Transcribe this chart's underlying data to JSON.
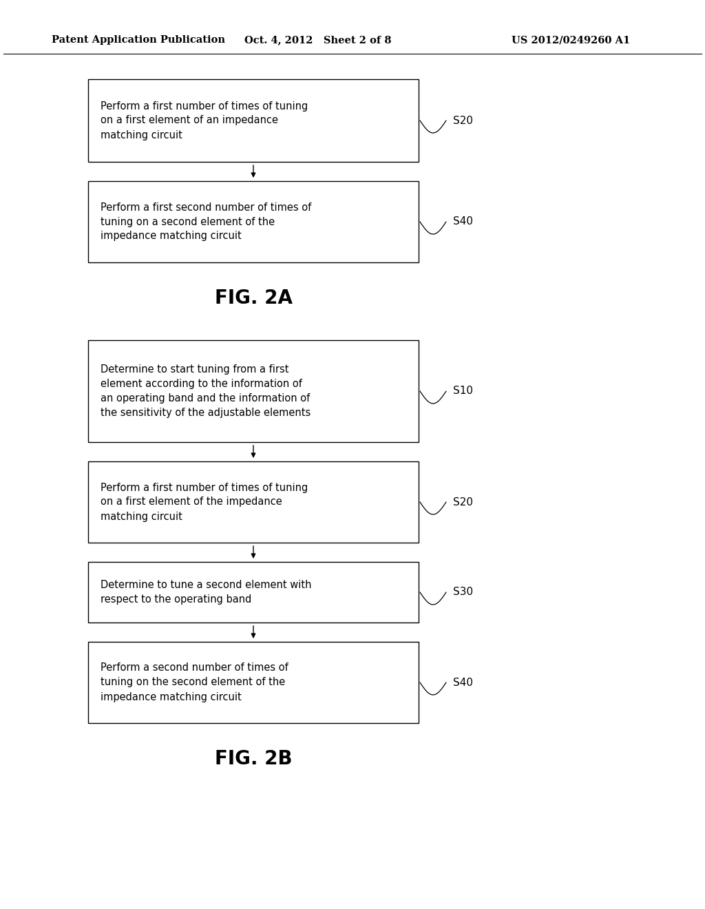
{
  "background_color": "#ffffff",
  "header_left": "Patent Application Publication",
  "header_mid": "Oct. 4, 2012   Sheet 2 of 8",
  "header_right": "US 2012/0249260 A1",
  "fig2a": {
    "title": "FIG. 2A",
    "boxes": [
      {
        "label": "S20",
        "text": "Perform a first number of times of tuning\non a first element of an impedance\nmatching circuit"
      },
      {
        "label": "S40",
        "text": "Perform a first second number of times of\ntuning on a second element of the\nimpedance matching circuit"
      }
    ]
  },
  "fig2b": {
    "title": "FIG. 2B",
    "boxes": [
      {
        "label": "S10",
        "text": "Determine to start tuning from a first\nelement according to the information of\nan operating band and the information of\nthe sensitivity of the adjustable elements"
      },
      {
        "label": "S20",
        "text": "Perform a first number of times of tuning\non a first element of the impedance\nmatching circuit"
      },
      {
        "label": "S30",
        "text": "Determine to tune a second element with\nrespect to the operating band"
      },
      {
        "label": "S40",
        "text": "Perform a second number of times of\ntuning on the second element of the\nimpedance matching circuit"
      }
    ]
  },
  "box_color": "#ffffff",
  "box_edge_color": "#000000",
  "text_color": "#000000",
  "arrow_color": "#000000",
  "label_color": "#000000",
  "font_size_box": 10.5,
  "font_size_label": 11,
  "font_size_title": 20,
  "font_size_header": 10.5
}
